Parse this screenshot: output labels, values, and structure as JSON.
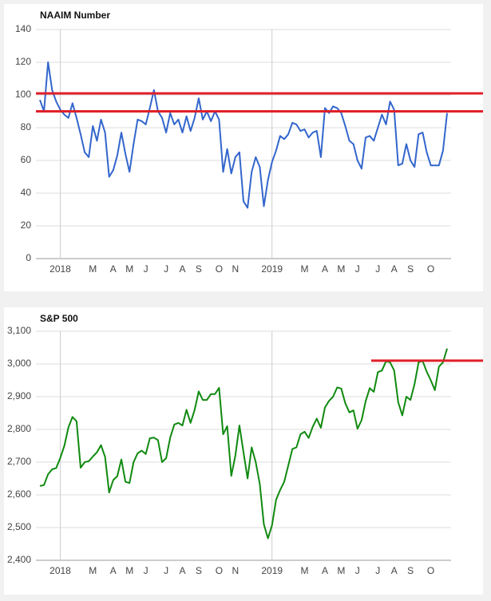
{
  "chart_data": [
    {
      "type": "line",
      "title": "NAAIM Number",
      "categories": [
        null,
        null,
        null,
        null,
        null,
        "2018",
        null,
        null,
        null,
        null,
        null,
        null,
        null,
        "M",
        null,
        null,
        null,
        null,
        "A",
        null,
        null,
        null,
        "M",
        null,
        null,
        null,
        "J",
        null,
        null,
        null,
        null,
        "J",
        null,
        null,
        null,
        "A",
        null,
        null,
        null,
        "S",
        null,
        null,
        null,
        null,
        "O",
        null,
        null,
        null,
        "N",
        null,
        null,
        null,
        null,
        null,
        null,
        null,
        null,
        "2019",
        null,
        null,
        null,
        null,
        null,
        null,
        null,
        "M",
        null,
        null,
        null,
        null,
        "A",
        null,
        null,
        null,
        "M",
        null,
        null,
        null,
        "J",
        null,
        null,
        null,
        null,
        "J",
        null,
        null,
        null,
        "A",
        null,
        null,
        null,
        "S",
        null,
        null,
        null,
        null,
        "O",
        null,
        null,
        null,
        null
      ],
      "series": [
        {
          "color": "#3366cc",
          "values": [
            97,
            90,
            120,
            103,
            96,
            91,
            88,
            86,
            95,
            86,
            76,
            65,
            62,
            81,
            72,
            85,
            77,
            50,
            54,
            63,
            77,
            64,
            53,
            70,
            85,
            84,
            82,
            92,
            103,
            90,
            86,
            77,
            89,
            82,
            85,
            77,
            87,
            78,
            86,
            98,
            85,
            90,
            84,
            90,
            85,
            53,
            67,
            52,
            62,
            65,
            35,
            31,
            53,
            62,
            56,
            32,
            48,
            59,
            66,
            75,
            73,
            76,
            83,
            82,
            78,
            79,
            74,
            77,
            78,
            62,
            92,
            89,
            93,
            92,
            89,
            81,
            72,
            70,
            60,
            55,
            74,
            75,
            72,
            80,
            88,
            82,
            96,
            91,
            57,
            58,
            70,
            60,
            56,
            76,
            77,
            65,
            57,
            57,
            57,
            66,
            89
          ]
        }
      ],
      "ylim": [
        0,
        140
      ],
      "yticks": [
        0,
        20,
        40,
        60,
        80,
        100,
        120,
        140
      ],
      "grid": true,
      "reference_lines": [
        101,
        90
      ],
      "reference_color": "#e0202a"
    },
    {
      "type": "line",
      "title": "S&P 500",
      "categories": [
        null,
        null,
        null,
        null,
        null,
        "2018",
        null,
        null,
        null,
        null,
        null,
        null,
        null,
        "M",
        null,
        null,
        null,
        null,
        "A",
        null,
        null,
        null,
        "M",
        null,
        null,
        null,
        "J",
        null,
        null,
        null,
        null,
        "J",
        null,
        null,
        null,
        "A",
        null,
        null,
        null,
        "S",
        null,
        null,
        null,
        null,
        "O",
        null,
        null,
        null,
        "N",
        null,
        null,
        null,
        null,
        null,
        null,
        null,
        null,
        "2019",
        null,
        null,
        null,
        null,
        null,
        null,
        null,
        "M",
        null,
        null,
        null,
        null,
        "A",
        null,
        null,
        null,
        "M",
        null,
        null,
        null,
        "J",
        null,
        null,
        null,
        null,
        "J",
        null,
        null,
        null,
        "A",
        null,
        null,
        null,
        "S",
        null,
        null,
        null,
        null,
        "O",
        null,
        null,
        null,
        null
      ],
      "series": [
        {
          "color": "#108a10",
          "values": [
            2627,
            2630,
            2663,
            2678,
            2682,
            2713,
            2750,
            2806,
            2838,
            2825,
            2683,
            2700,
            2703,
            2717,
            2730,
            2752,
            2716,
            2607,
            2645,
            2657,
            2708,
            2640,
            2636,
            2700,
            2727,
            2735,
            2725,
            2773,
            2775,
            2767,
            2700,
            2712,
            2775,
            2815,
            2820,
            2812,
            2860,
            2820,
            2860,
            2916,
            2890,
            2890,
            2908,
            2908,
            2927,
            2785,
            2810,
            2658,
            2720,
            2812,
            2730,
            2650,
            2745,
            2700,
            2633,
            2510,
            2467,
            2507,
            2585,
            2615,
            2640,
            2690,
            2740,
            2745,
            2785,
            2793,
            2774,
            2808,
            2833,
            2805,
            2867,
            2887,
            2900,
            2928,
            2925,
            2880,
            2852,
            2858,
            2802,
            2828,
            2886,
            2926,
            2915,
            2975,
            2980,
            3008,
            3005,
            2980,
            2883,
            2843,
            2900,
            2890,
            2938,
            3005,
            3009,
            2976,
            2950,
            2920,
            2992,
            3005,
            3047
          ]
        }
      ],
      "ylim": [
        2400,
        3100
      ],
      "yticks": [
        {
          "value": 2400,
          "label": "2,400"
        },
        {
          "value": 2500,
          "label": "2,500"
        },
        {
          "value": 2600,
          "label": "2,600"
        },
        {
          "value": 2700,
          "label": "2,700"
        },
        {
          "value": 2800,
          "label": "2,800"
        },
        {
          "value": 2900,
          "label": "2,900"
        },
        {
          "value": 3000,
          "label": "3,000"
        },
        {
          "value": 3100,
          "label": "3,100"
        }
      ],
      "grid": true,
      "reference_lines": [
        3010
      ],
      "reference_color": "#e0202a"
    }
  ]
}
